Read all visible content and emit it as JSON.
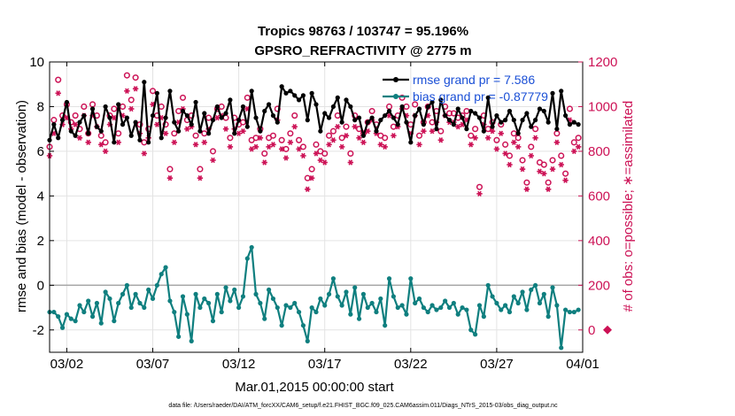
{
  "chart_data": {
    "type": "line",
    "title": "Tropics 98763 / 103747 = 95.196%",
    "subtitle": "GPSRO_REFRACTIVITY @ 2775 m",
    "xlabel": "Mar.01,2015 00:00:00 start",
    "ylabel_left": "rmse and bias (model - observation)",
    "ylabel_right": "# of obs: o=possible; ∗=assimilated",
    "footnote": "data file: /Users/raeder/DAI/ATM_forcXX/CAM6_setup/f.e21.FHIST_BGC.f09_025.CAM6assim.011/Diags_NTrS_2015-03/obs_diag_output.nc",
    "x_ticks": [
      "03/02",
      "03/07",
      "03/12",
      "03/17",
      "03/22",
      "03/27",
      "04/01"
    ],
    "x_tick_days": [
      1,
      6,
      11,
      16,
      21,
      26,
      31
    ],
    "xlim_days": [
      0,
      31
    ],
    "ylim_left": [
      -3,
      10
    ],
    "yticks_left": [
      "-2",
      "0",
      "2",
      "4",
      "6",
      "8",
      "10"
    ],
    "ylim_right": [
      -100,
      1200
    ],
    "yticks_right": [
      "0",
      "200",
      "400",
      "600",
      "800",
      "1000",
      "1200"
    ],
    "zero_line": 0,
    "colors": {
      "rmse": "#000000",
      "bias": "#0f7f7f",
      "obs": "#cc1155",
      "legend_text": "#1a4fd6",
      "grid": "#e3e3e3"
    },
    "legend": [
      {
        "label": "rmse grand pr = 7.586",
        "series": "rmse"
      },
      {
        "label": "bias grand pr = -0.87779",
        "series": "bias"
      }
    ],
    "outside_marker": {
      "x_day": 31.25,
      "y_count": 0,
      "label": "obs count marker at axis edge"
    },
    "series": [
      {
        "name": "rmse",
        "axis": "left",
        "marker": "dot",
        "x": [
          0.0,
          0.25,
          0.5,
          0.75,
          1.0,
          1.25,
          1.5,
          1.75,
          2.0,
          2.25,
          2.5,
          2.75,
          3.0,
          3.25,
          3.5,
          3.75,
          4.0,
          4.25,
          4.5,
          4.75,
          5.0,
          5.25,
          5.5,
          5.75,
          6.0,
          6.25,
          6.5,
          6.75,
          7.0,
          7.25,
          7.5,
          7.75,
          8.0,
          8.25,
          8.5,
          8.75,
          9.0,
          9.25,
          9.5,
          9.75,
          10.0,
          10.25,
          10.5,
          10.75,
          11.0,
          11.25,
          11.5,
          11.75,
          12.0,
          12.25,
          12.5,
          12.75,
          13.0,
          13.25,
          13.5,
          13.75,
          14.0,
          14.25,
          14.5,
          14.75,
          15.0,
          15.25,
          15.5,
          15.75,
          16.0,
          16.25,
          16.5,
          16.75,
          17.0,
          17.25,
          17.5,
          17.75,
          18.0,
          18.25,
          18.5,
          18.75,
          19.0,
          19.25,
          19.5,
          19.75,
          20.0,
          20.25,
          20.5,
          20.75,
          21.0,
          21.25,
          21.5,
          21.75,
          22.0,
          22.25,
          22.5,
          22.75,
          23.0,
          23.25,
          23.5,
          23.75,
          24.0,
          24.25,
          24.5,
          24.75,
          25.0,
          25.25,
          25.5,
          25.75,
          26.0,
          26.25,
          26.5,
          26.75,
          27.0,
          27.25,
          27.5,
          27.75,
          28.0,
          28.25,
          28.5,
          28.75,
          29.0,
          29.25,
          29.5,
          29.75,
          30.0,
          30.25,
          30.5,
          30.75
        ],
        "y": [
          6.5,
          7.2,
          6.6,
          7.4,
          8.2,
          6.9,
          6.7,
          7.3,
          7.6,
          6.8,
          7.9,
          7.1,
          6.9,
          8.0,
          7.5,
          6.4,
          8.1,
          7.2,
          7.5,
          6.7,
          7.3,
          6.5,
          9.1,
          6.4,
          7.6,
          8.6,
          6.6,
          7.5,
          8.7,
          7.3,
          6.9,
          7.8,
          7.6,
          7.2,
          8.2,
          6.9,
          7.7,
          6.8,
          7.4,
          8.0,
          7.5,
          7.7,
          8.3,
          6.8,
          7.4,
          8.0,
          7.1,
          8.7,
          7.5,
          6.9,
          7.8,
          8.1,
          7.6,
          7.3,
          8.9,
          8.6,
          8.7,
          8.5,
          8.3,
          8.5,
          7.4,
          8.6,
          8.1,
          6.9,
          7.7,
          7.5,
          8.0,
          8.4,
          7.3,
          8.3,
          8.0,
          7.4,
          7.5,
          6.7,
          7.3,
          7.5,
          6.9,
          7.4,
          7.6,
          7.8,
          7.5,
          7.2,
          8.0,
          7.3,
          6.4,
          7.6,
          7.9,
          7.2,
          8.0,
          8.2,
          7.0,
          8.3,
          7.6,
          7.4,
          7.2,
          7.9,
          7.5,
          7.0,
          7.8,
          7.7,
          7.5,
          6.9,
          8.4,
          7.1,
          7.6,
          7.3,
          7.4,
          7.8,
          7.4,
          6.8,
          7.4,
          7.7,
          7.1,
          7.4,
          7.9,
          7.8,
          7.3,
          8.6,
          7.0,
          8.7,
          7.6,
          7.2,
          7.3,
          7.2
        ]
      },
      {
        "name": "bias",
        "axis": "left",
        "marker": "dot",
        "x": [
          0.0,
          0.25,
          0.5,
          0.75,
          1.0,
          1.25,
          1.5,
          1.75,
          2.0,
          2.25,
          2.5,
          2.75,
          3.0,
          3.25,
          3.5,
          3.75,
          4.0,
          4.25,
          4.5,
          4.75,
          5.0,
          5.25,
          5.5,
          5.75,
          6.0,
          6.25,
          6.5,
          6.75,
          7.0,
          7.25,
          7.5,
          7.75,
          8.0,
          8.25,
          8.5,
          8.75,
          9.0,
          9.25,
          9.5,
          9.75,
          10.0,
          10.25,
          10.5,
          10.75,
          11.0,
          11.25,
          11.5,
          11.75,
          12.0,
          12.25,
          12.5,
          12.75,
          13.0,
          13.25,
          13.5,
          13.75,
          14.0,
          14.25,
          14.5,
          14.75,
          15.0,
          15.25,
          15.5,
          15.75,
          16.0,
          16.25,
          16.5,
          16.75,
          17.0,
          17.25,
          17.5,
          17.75,
          18.0,
          18.25,
          18.5,
          18.75,
          19.0,
          19.25,
          19.5,
          19.75,
          20.0,
          20.25,
          20.5,
          20.75,
          21.0,
          21.25,
          21.5,
          21.75,
          22.0,
          22.25,
          22.5,
          22.75,
          23.0,
          23.25,
          23.5,
          23.75,
          24.0,
          24.25,
          24.5,
          24.75,
          25.0,
          25.25,
          25.5,
          25.75,
          26.0,
          26.25,
          26.5,
          26.75,
          27.0,
          27.25,
          27.5,
          27.75,
          28.0,
          28.25,
          28.5,
          28.75,
          29.0,
          29.25,
          29.5,
          29.75,
          30.0,
          30.25,
          30.5,
          30.75
        ],
        "y": [
          -1.2,
          -1.2,
          -1.4,
          -1.9,
          -1.3,
          -1.5,
          -1.6,
          -0.9,
          -1.2,
          -0.7,
          -1.4,
          -0.8,
          -1.7,
          -0.3,
          -0.6,
          -1.6,
          -0.8,
          -0.4,
          0.0,
          -1.0,
          -0.4,
          -0.8,
          -1.0,
          -0.2,
          -0.6,
          0.0,
          0.5,
          0.8,
          -0.7,
          -1.2,
          -2.3,
          -0.5,
          -1.3,
          -2.5,
          -0.4,
          -1.0,
          -0.6,
          -0.8,
          -1.6,
          -0.4,
          -1.2,
          -0.1,
          -0.7,
          -0.2,
          -1.0,
          -0.5,
          1.2,
          1.7,
          -0.4,
          -0.8,
          -1.5,
          -0.2,
          -0.6,
          -1.0,
          -1.8,
          -0.9,
          -1.0,
          -0.8,
          -1.2,
          -1.8,
          -2.5,
          -1.0,
          -1.2,
          -0.6,
          -0.9,
          -0.4,
          0.3,
          -0.5,
          -0.9,
          -0.3,
          -1.3,
          -0.1,
          -1.5,
          -0.4,
          -1.0,
          -0.8,
          -1.2,
          -0.6,
          -1.8,
          0.3,
          -0.5,
          -1.0,
          -0.9,
          -1.3,
          0.3,
          -0.8,
          -0.6,
          -1.0,
          -1.2,
          -0.9,
          -1.1,
          -1.0,
          -0.7,
          -1.0,
          -0.8,
          -1.3,
          -1.0,
          -1.1,
          -2.0,
          -2.2,
          -0.9,
          -1.4,
          0.0,
          -0.5,
          -0.8,
          -1.1,
          -0.9,
          -1.2,
          -0.5,
          -0.8,
          -0.3,
          -1.1,
          -0.2,
          0.0,
          -0.8,
          -0.4,
          -1.4,
          -0.1,
          -0.9,
          -2.8,
          -1.1,
          -1.2,
          -1.2,
          -1.1
        ]
      },
      {
        "name": "obs possible (o)",
        "axis": "right",
        "marker": "circle",
        "x": [
          0.0,
          0.25,
          0.5,
          0.75,
          1.0,
          1.25,
          1.5,
          1.75,
          2.0,
          2.25,
          2.5,
          2.75,
          3.0,
          3.25,
          3.5,
          3.75,
          4.0,
          4.25,
          4.5,
          4.75,
          5.0,
          5.25,
          5.5,
          5.75,
          6.0,
          6.25,
          6.5,
          6.75,
          7.0,
          7.25,
          7.5,
          7.75,
          8.0,
          8.25,
          8.5,
          8.75,
          9.0,
          9.25,
          9.5,
          9.75,
          10.0,
          10.25,
          10.5,
          10.75,
          11.0,
          11.25,
          11.5,
          11.75,
          12.0,
          12.25,
          12.5,
          12.75,
          13.0,
          13.25,
          13.5,
          13.75,
          14.0,
          14.25,
          14.5,
          14.75,
          15.0,
          15.25,
          15.5,
          15.75,
          16.0,
          16.25,
          16.5,
          16.75,
          17.0,
          17.25,
          17.5,
          17.75,
          18.0,
          18.25,
          18.5,
          18.75,
          19.0,
          19.25,
          19.5,
          19.75,
          20.0,
          20.25,
          20.5,
          20.75,
          21.0,
          21.25,
          21.5,
          21.75,
          22.0,
          22.25,
          22.5,
          22.75,
          23.0,
          23.25,
          23.5,
          23.75,
          24.0,
          24.25,
          24.5,
          24.75,
          25.0,
          25.25,
          25.5,
          25.75,
          26.0,
          26.25,
          26.5,
          26.75,
          27.0,
          27.25,
          27.5,
          27.75,
          28.0,
          28.25,
          28.5,
          28.75,
          29.0,
          29.25,
          29.5,
          29.75,
          30.0,
          30.25,
          30.5,
          30.75
        ],
        "y": [
          820,
          940,
          1120,
          960,
          1010,
          930,
          960,
          900,
          1000,
          880,
          1010,
          960,
          870,
          840,
          960,
          990,
          880,
          1000,
          1140,
          1030,
          1130,
          920,
          840,
          900,
          1070,
          960,
          1000,
          920,
          720,
          880,
          980,
          1040,
          940,
          960,
          870,
          720,
          880,
          950,
          800,
          990,
          1000,
          950,
          860,
          950,
          920,
          930,
          1040,
          850,
          860,
          900,
          790,
          860,
          870,
          990,
          850,
          810,
          880,
          960,
          850,
          820,
          680,
          720,
          830,
          800,
          790,
          870,
          890,
          960,
          860,
          910,
          790,
          960,
          900,
          880,
          930,
          980,
          920,
          870,
          860,
          1000,
          910,
          960,
          1040,
          1000,
          920,
          1010,
          870,
          930,
          1000,
          930,
          980,
          890,
          1000,
          970,
          970,
          950,
          960,
          980,
          870,
          900,
          640,
          960,
          900,
          930,
          850,
          920,
          830,
          780,
          880,
          860,
          760,
          660,
          820,
          900,
          750,
          740,
          660,
          760,
          880,
          780,
          700,
          990,
          840,
          860
        ]
      },
      {
        "name": "obs assimilated (*)",
        "axis": "right",
        "marker": "star",
        "x": [
          0.0,
          0.25,
          0.5,
          0.75,
          1.0,
          1.25,
          1.5,
          1.75,
          2.0,
          2.25,
          2.5,
          2.75,
          3.0,
          3.25,
          3.5,
          3.75,
          4.0,
          4.25,
          4.5,
          4.75,
          5.0,
          5.25,
          5.5,
          5.75,
          6.0,
          6.25,
          6.5,
          6.75,
          7.0,
          7.25,
          7.5,
          7.75,
          8.0,
          8.25,
          8.5,
          8.75,
          9.0,
          9.25,
          9.5,
          9.75,
          10.0,
          10.25,
          10.5,
          10.75,
          11.0,
          11.25,
          11.5,
          11.75,
          12.0,
          12.25,
          12.5,
          12.75,
          13.0,
          13.25,
          13.5,
          13.75,
          14.0,
          14.25,
          14.5,
          14.75,
          15.0,
          15.25,
          15.5,
          15.75,
          16.0,
          16.25,
          16.5,
          16.75,
          17.0,
          17.25,
          17.5,
          17.75,
          18.0,
          18.25,
          18.5,
          18.75,
          19.0,
          19.25,
          19.5,
          19.75,
          20.0,
          20.25,
          20.5,
          20.75,
          21.0,
          21.25,
          21.5,
          21.75,
          22.0,
          22.25,
          22.5,
          22.75,
          23.0,
          23.25,
          23.5,
          23.75,
          24.0,
          24.25,
          24.5,
          24.75,
          25.0,
          25.25,
          25.5,
          25.75,
          26.0,
          26.25,
          26.5,
          26.75,
          27.0,
          27.25,
          27.5,
          27.75,
          28.0,
          28.25,
          28.5,
          28.75,
          29.0,
          29.25,
          29.5,
          29.75,
          30.0,
          30.25,
          30.5,
          30.75
        ],
        "y": [
          780,
          880,
          1060,
          920,
          950,
          900,
          920,
          860,
          960,
          840,
          960,
          910,
          830,
          800,
          920,
          950,
          840,
          960,
          1070,
          990,
          1080,
          880,
          790,
          860,
          1010,
          920,
          950,
          880,
          680,
          840,
          930,
          990,
          900,
          910,
          830,
          680,
          840,
          900,
          760,
          950,
          960,
          900,
          820,
          900,
          880,
          890,
          990,
          810,
          820,
          860,
          750,
          820,
          830,
          940,
          810,
          770,
          840,
          910,
          810,
          780,
          630,
          680,
          790,
          760,
          750,
          830,
          850,
          910,
          820,
          870,
          750,
          910,
          860,
          840,
          890,
          940,
          880,
          830,
          820,
          960,
          870,
          910,
          990,
          960,
          880,
          960,
          830,
          890,
          960,
          890,
          930,
          850,
          960,
          930,
          930,
          910,
          920,
          940,
          830,
          860,
          610,
          920,
          860,
          890,
          810,
          880,
          790,
          740,
          840,
          820,
          720,
          630,
          780,
          860,
          710,
          700,
          630,
          720,
          840,
          740,
          670,
          940,
          800,
          820
        ]
      }
    ]
  }
}
